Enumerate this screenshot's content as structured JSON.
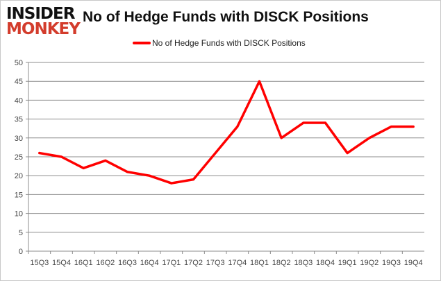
{
  "logo": {
    "line1": "INSIDER",
    "line2": "MONKEY"
  },
  "chart_data": {
    "type": "line",
    "title": "No of Hedge Funds with DISCK Positions",
    "xlabel": "",
    "ylabel": "",
    "categories": [
      "15Q3",
      "15Q4",
      "16Q1",
      "16Q2",
      "16Q3",
      "16Q4",
      "17Q1",
      "17Q2",
      "17Q3",
      "17Q4",
      "18Q1",
      "18Q2",
      "18Q3",
      "18Q4",
      "19Q1",
      "19Q2",
      "19Q3",
      "19Q4"
    ],
    "series": [
      {
        "name": "No of Hedge Funds with DISCK Positions",
        "color": "#ff0000",
        "values": [
          26,
          25,
          22,
          24,
          21,
          20,
          18,
          19,
          26,
          33,
          45,
          30,
          34,
          34,
          26,
          30,
          33,
          33
        ]
      }
    ],
    "ylim": [
      0,
      50
    ],
    "yticks": [
      0,
      5,
      10,
      15,
      20,
      25,
      30,
      35,
      40,
      45,
      50
    ],
    "grid": true,
    "legend": "top"
  }
}
